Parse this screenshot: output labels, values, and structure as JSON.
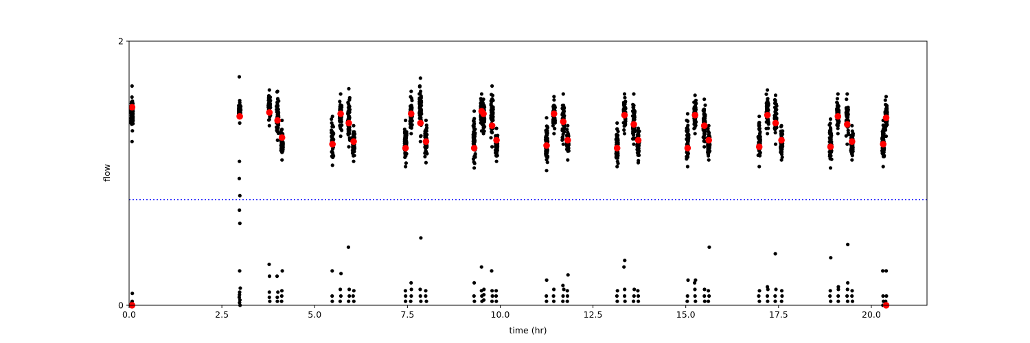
{
  "chart_data": {
    "type": "scatter",
    "title": "",
    "xlabel": "time (hr)",
    "ylabel": "flow",
    "xlim": [
      0,
      21.5
    ],
    "ylim": [
      0,
      2
    ],
    "x_ticks": [
      0.0,
      2.5,
      5.0,
      7.5,
      10.0,
      12.5,
      15.0,
      17.5,
      20.0
    ],
    "x_tick_labels": [
      "0.0",
      "2.5",
      "5.0",
      "7.5",
      "10.0",
      "12.5",
      "15.0",
      "17.5",
      "20.0"
    ],
    "y_ticks": [
      0,
      2
    ],
    "y_tick_labels": [
      "0",
      "2"
    ],
    "grid": false,
    "threshold": {
      "y": 0.8,
      "color": "#0000ff",
      "style": "dotted"
    },
    "colors": {
      "raw": "#000000",
      "mean": "#ff0000"
    },
    "clusters": [
      {
        "x": 0.08,
        "y": 1.5,
        "high_min": 1.24,
        "high_max": 1.66,
        "low_y": [
          0.0,
          0.02,
          0.03,
          0.09
        ]
      },
      {
        "x": 2.98,
        "y": 1.43,
        "high_min": 1.38,
        "high_max": 1.55,
        "low_y": [
          0.0,
          0.02,
          0.04,
          0.06,
          0.08,
          0.1,
          0.13,
          0.26,
          0.62,
          0.72,
          0.83,
          0.96,
          1.09,
          1.73
        ]
      },
      {
        "x": 3.78,
        "y": 1.46,
        "high_min": 1.36,
        "high_max": 1.63,
        "low_y": [
          0.03,
          0.06,
          0.1,
          0.22,
          0.31
        ]
      },
      {
        "x": 4.0,
        "y": 1.4,
        "high_min": 1.25,
        "high_max": 1.62,
        "low_y": [
          0.03,
          0.06,
          0.1,
          0.22
        ]
      },
      {
        "x": 4.12,
        "y": 1.27,
        "high_min": 1.1,
        "high_max": 1.4,
        "low_y": [
          0.03,
          0.07,
          0.11,
          0.26
        ]
      },
      {
        "x": 5.48,
        "y": 1.22,
        "high_min": 1.06,
        "high_max": 1.43,
        "low_y": [
          0.03,
          0.07,
          0.26
        ]
      },
      {
        "x": 5.7,
        "y": 1.45,
        "high_min": 1.28,
        "high_max": 1.6,
        "low_y": [
          0.03,
          0.07,
          0.12,
          0.24
        ]
      },
      {
        "x": 5.92,
        "y": 1.38,
        "high_min": 1.2,
        "high_max": 1.64,
        "low_y": [
          0.03,
          0.07,
          0.12,
          0.44
        ]
      },
      {
        "x": 6.05,
        "y": 1.24,
        "high_min": 1.09,
        "high_max": 1.36,
        "low_y": [
          0.03,
          0.07,
          0.11
        ]
      },
      {
        "x": 7.45,
        "y": 1.19,
        "high_min": 1.05,
        "high_max": 1.4,
        "low_y": [
          0.03,
          0.07,
          0.11
        ]
      },
      {
        "x": 7.6,
        "y": 1.45,
        "high_min": 1.3,
        "high_max": 1.62,
        "low_y": [
          0.03,
          0.07,
          0.12,
          0.17
        ]
      },
      {
        "x": 7.85,
        "y": 1.38,
        "high_min": 1.24,
        "high_max": 1.72,
        "low_y": [
          0.03,
          0.07,
          0.12,
          0.51
        ]
      },
      {
        "x": 8.0,
        "y": 1.24,
        "high_min": 1.08,
        "high_max": 1.4,
        "low_y": [
          0.03,
          0.07,
          0.11
        ]
      },
      {
        "x": 9.3,
        "y": 1.19,
        "high_min": 1.04,
        "high_max": 1.47,
        "low_y": [
          0.03,
          0.07,
          0.17
        ]
      },
      {
        "x": 9.5,
        "y": 1.47,
        "high_min": 1.32,
        "high_max": 1.6,
        "low_y": [
          0.03,
          0.07,
          0.11,
          0.29
        ]
      },
      {
        "x": 9.55,
        "y": 1.45,
        "high_min": 1.3,
        "high_max": 1.56,
        "low_y": [
          0.04,
          0.08,
          0.12
        ]
      },
      {
        "x": 9.78,
        "y": 1.36,
        "high_min": 1.2,
        "high_max": 1.66,
        "low_y": [
          0.03,
          0.07,
          0.11,
          0.26
        ]
      },
      {
        "x": 9.9,
        "y": 1.25,
        "high_min": 1.09,
        "high_max": 1.34,
        "low_y": [
          0.03,
          0.07,
          0.11
        ]
      },
      {
        "x": 11.25,
        "y": 1.21,
        "high_min": 1.02,
        "high_max": 1.42,
        "low_y": [
          0.03,
          0.07,
          0.19
        ]
      },
      {
        "x": 11.45,
        "y": 1.45,
        "high_min": 1.3,
        "high_max": 1.58,
        "low_y": [
          0.03,
          0.07,
          0.12
        ]
      },
      {
        "x": 11.7,
        "y": 1.39,
        "high_min": 1.22,
        "high_max": 1.6,
        "low_y": [
          0.03,
          0.07,
          0.12,
          0.15
        ]
      },
      {
        "x": 11.82,
        "y": 1.25,
        "high_min": 1.1,
        "high_max": 1.36,
        "low_y": [
          0.03,
          0.07,
          0.11,
          0.23
        ]
      },
      {
        "x": 13.15,
        "y": 1.19,
        "high_min": 1.05,
        "high_max": 1.38,
        "low_y": [
          0.03,
          0.07,
          0.11
        ]
      },
      {
        "x": 13.35,
        "y": 1.44,
        "high_min": 1.3,
        "high_max": 1.6,
        "low_y": [
          0.03,
          0.07,
          0.12,
          0.29,
          0.34
        ]
      },
      {
        "x": 13.6,
        "y": 1.37,
        "high_min": 1.22,
        "high_max": 1.6,
        "low_y": [
          0.03,
          0.07,
          0.12
        ]
      },
      {
        "x": 13.72,
        "y": 1.25,
        "high_min": 1.08,
        "high_max": 1.34,
        "low_y": [
          0.03,
          0.07,
          0.11
        ]
      },
      {
        "x": 15.05,
        "y": 1.19,
        "high_min": 1.05,
        "high_max": 1.45,
        "low_y": [
          0.03,
          0.07,
          0.19
        ]
      },
      {
        "x": 15.25,
        "y": 1.44,
        "high_min": 1.3,
        "high_max": 1.59,
        "low_y": [
          0.03,
          0.07,
          0.12,
          0.17,
          0.19
        ]
      },
      {
        "x": 15.5,
        "y": 1.36,
        "high_min": 1.2,
        "high_max": 1.56,
        "low_y": [
          0.03,
          0.07,
          0.12
        ]
      },
      {
        "x": 15.62,
        "y": 1.25,
        "high_min": 1.1,
        "high_max": 1.36,
        "low_y": [
          0.03,
          0.07,
          0.11,
          0.44
        ]
      },
      {
        "x": 16.98,
        "y": 1.2,
        "high_min": 1.05,
        "high_max": 1.43,
        "low_y": [
          0.03,
          0.07,
          0.11
        ]
      },
      {
        "x": 17.2,
        "y": 1.44,
        "high_min": 1.3,
        "high_max": 1.63,
        "low_y": [
          0.03,
          0.07,
          0.12,
          0.14
        ]
      },
      {
        "x": 17.42,
        "y": 1.38,
        "high_min": 1.22,
        "high_max": 1.59,
        "low_y": [
          0.03,
          0.07,
          0.12,
          0.39
        ]
      },
      {
        "x": 17.58,
        "y": 1.25,
        "high_min": 1.1,
        "high_max": 1.36,
        "low_y": [
          0.03,
          0.07,
          0.11
        ]
      },
      {
        "x": 18.9,
        "y": 1.2,
        "high_min": 1.04,
        "high_max": 1.41,
        "low_y": [
          0.03,
          0.07,
          0.11,
          0.36
        ]
      },
      {
        "x": 19.1,
        "y": 1.43,
        "high_min": 1.3,
        "high_max": 1.6,
        "low_y": [
          0.03,
          0.07,
          0.12,
          0.14
        ]
      },
      {
        "x": 19.35,
        "y": 1.37,
        "high_min": 1.22,
        "high_max": 1.6,
        "low_y": [
          0.03,
          0.07,
          0.12,
          0.17,
          0.46
        ]
      },
      {
        "x": 19.48,
        "y": 1.24,
        "high_min": 1.1,
        "high_max": 1.36,
        "low_y": [
          0.03,
          0.07,
          0.11
        ]
      },
      {
        "x": 20.32,
        "y": 1.22,
        "high_min": 1.05,
        "high_max": 1.4,
        "low_y": [
          0.0,
          0.03,
          0.07,
          0.26
        ]
      },
      {
        "x": 20.4,
        "y": 1.42,
        "high_min": 1.28,
        "high_max": 1.58,
        "low_y": [
          0.0,
          0.03,
          0.07,
          0.26
        ]
      }
    ],
    "extra_means": [
      {
        "x": 0.08,
        "y": 0.0
      },
      {
        "x": 20.4,
        "y": 0.0
      }
    ]
  }
}
